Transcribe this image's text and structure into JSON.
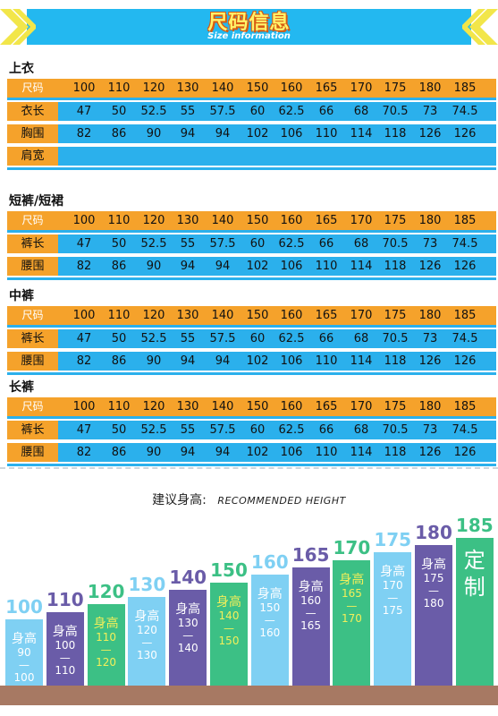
{
  "banner": {
    "title": "尺码信息",
    "subtitle": "Size information"
  },
  "sizes": [
    "100",
    "110",
    "120",
    "130",
    "140",
    "150",
    "160",
    "165",
    "170",
    "175",
    "180",
    "185"
  ],
  "head_label": "尺码",
  "sections": [
    {
      "title": "上衣",
      "rows": [
        {
          "label": "衣长",
          "values": [
            "47",
            "50",
            "52.5",
            "55",
            "57.5",
            "60",
            "62.5",
            "66",
            "68",
            "70.5",
            "73",
            "74.5"
          ]
        },
        {
          "label": "胸围",
          "values": [
            "82",
            "86",
            "90",
            "94",
            "94",
            "102",
            "106",
            "110",
            "114",
            "118",
            "126",
            "126"
          ]
        },
        {
          "label": "肩宽",
          "values": [
            "",
            "",
            "",
            "",
            "",
            "",
            "",
            "",
            "",
            "",
            "",
            ""
          ]
        }
      ]
    },
    {
      "title": "短裤/短裙",
      "rows": [
        {
          "label": "裤长",
          "values": [
            "47",
            "50",
            "52.5",
            "55",
            "57.5",
            "60",
            "62.5",
            "66",
            "68",
            "70.5",
            "73",
            "74.5"
          ]
        },
        {
          "label": "腰围",
          "values": [
            "82",
            "86",
            "90",
            "94",
            "94",
            "102",
            "106",
            "110",
            "114",
            "118",
            "126",
            "126"
          ]
        }
      ]
    },
    {
      "title": "中裤",
      "rows": [
        {
          "label": "裤长",
          "values": [
            "47",
            "50",
            "52.5",
            "55",
            "57.5",
            "60",
            "62.5",
            "66",
            "68",
            "70.5",
            "73",
            "74.5"
          ]
        },
        {
          "label": "腰围",
          "values": [
            "82",
            "86",
            "90",
            "94",
            "94",
            "102",
            "106",
            "110",
            "114",
            "118",
            "126",
            "126"
          ]
        }
      ]
    },
    {
      "title": "长裤",
      "rows": [
        {
          "label": "裤长",
          "values": [
            "47",
            "50",
            "52.5",
            "55",
            "57.5",
            "60",
            "62.5",
            "66",
            "68",
            "70.5",
            "73",
            "74.5"
          ]
        },
        {
          "label": "腰围",
          "values": [
            "82",
            "86",
            "90",
            "94",
            "94",
            "102",
            "106",
            "110",
            "114",
            "118",
            "126",
            "126"
          ]
        }
      ]
    }
  ],
  "recommend": {
    "cn": "建议身高:",
    "en": "RECOMMENDED HEIGHT"
  },
  "height_columns": [
    {
      "size": "100",
      "h_label": "身高",
      "h_from": "90",
      "h_dash": "—",
      "h_to": "100",
      "color": "#7fd0f3",
      "num_color": "#7fd0f3"
    },
    {
      "size": "110",
      "h_label": "身高",
      "h_from": "100",
      "h_dash": "—",
      "h_to": "110",
      "color": "#6a5ca8",
      "num_color": "#6a5ca8"
    },
    {
      "size": "120",
      "h_label": "身高",
      "h_from": "110",
      "h_dash": "—",
      "h_to": "120",
      "color": "#3cc085",
      "num_color": "#3cc085"
    },
    {
      "size": "130",
      "h_label": "身高",
      "h_from": "120",
      "h_dash": "—",
      "h_to": "130",
      "color": "#7fd0f3",
      "num_color": "#7fd0f3"
    },
    {
      "size": "140",
      "h_label": "身高",
      "h_from": "130",
      "h_dash": "—",
      "h_to": "140",
      "color": "#6a5ca8",
      "num_color": "#6a5ca8"
    },
    {
      "size": "150",
      "h_label": "身高",
      "h_from": "140",
      "h_dash": "—",
      "h_to": "150",
      "color": "#3cc085",
      "num_color": "#3cc085"
    },
    {
      "size": "160",
      "h_label": "身高",
      "h_from": "150",
      "h_dash": "—",
      "h_to": "160",
      "color": "#7fd0f3",
      "num_color": "#7fd0f3"
    },
    {
      "size": "165",
      "h_label": "身高",
      "h_from": "160",
      "h_dash": "—",
      "h_to": "165",
      "color": "#6a5ca8",
      "num_color": "#6a5ca8"
    },
    {
      "size": "170",
      "h_label": "身高",
      "h_from": "165",
      "h_dash": "—",
      "h_to": "170",
      "color": "#3cc085",
      "num_color": "#3cc085"
    },
    {
      "size": "175",
      "h_label": "身高",
      "h_from": "170",
      "h_dash": "—",
      "h_to": "175",
      "color": "#7fd0f3",
      "num_color": "#7fd0f3"
    },
    {
      "size": "180",
      "h_label": "身高",
      "h_from": "175",
      "h_dash": "—",
      "h_to": "180",
      "color": "#6a5ca8",
      "num_color": "#6a5ca8"
    },
    {
      "size": "185",
      "h_label": "定",
      "h_from": "制",
      "h_dash": "",
      "h_to": "",
      "color": "#3cc085",
      "num_color": "#3cc085"
    }
  ],
  "colors": {
    "banner": "#23b8f0",
    "header_row": "#f5a22b",
    "data_row": "#2bb0ec",
    "ground": "#a77963"
  }
}
